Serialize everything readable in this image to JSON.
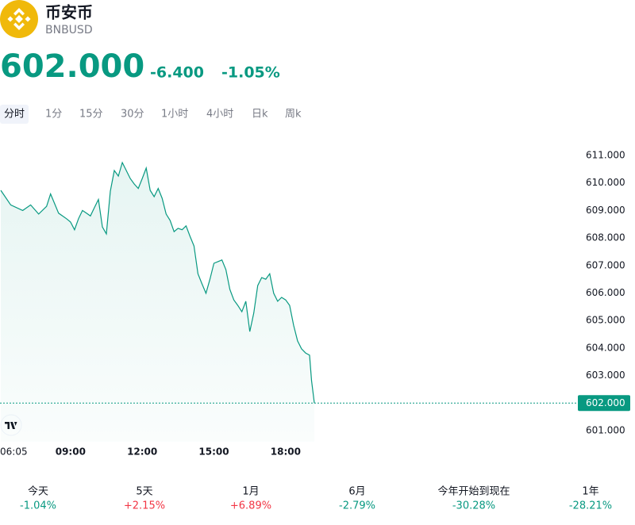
{
  "header": {
    "name": "币安币",
    "symbol": "BNBUSD",
    "price": "602.000",
    "change": "-6.400",
    "change_percent": "-1.05%"
  },
  "tabs": [
    "分时",
    "1分",
    "15分",
    "30分",
    "1小时",
    "4小时",
    "日k",
    "周k"
  ],
  "active_tab": 0,
  "chart_data": {
    "type": "line",
    "color": "#089981",
    "x": [
      "06:05",
      "06:30",
      "07:00",
      "07:20",
      "07:40",
      "08:00",
      "08:10",
      "08:30",
      "08:50",
      "09:00",
      "09:10",
      "09:20",
      "09:30",
      "09:40",
      "09:50",
      "10:00",
      "10:10",
      "10:20",
      "10:30",
      "10:40",
      "10:50",
      "11:00",
      "11:10",
      "11:20",
      "11:30",
      "11:40",
      "11:50",
      "12:00",
      "12:10",
      "12:20",
      "12:30",
      "12:40",
      "12:50",
      "13:00",
      "13:10",
      "13:20",
      "13:30",
      "13:40",
      "13:50",
      "14:00",
      "14:10",
      "14:20",
      "14:30",
      "14:40",
      "14:50",
      "15:00",
      "15:10",
      "15:20",
      "15:30",
      "15:40",
      "15:50",
      "16:00",
      "16:10",
      "16:20",
      "16:30",
      "16:40",
      "16:50",
      "17:00",
      "17:10",
      "17:20",
      "17:30",
      "17:40",
      "17:50",
      "18:00",
      "18:10",
      "18:20",
      "18:30",
      "18:40",
      "18:50",
      "19:00",
      "19:05",
      "19:10",
      "19:12"
    ],
    "values": [
      609.73,
      609.2,
      609.0,
      609.2,
      608.87,
      609.15,
      609.6,
      608.9,
      608.7,
      608.58,
      608.3,
      608.7,
      609.0,
      608.9,
      608.8,
      609.1,
      609.4,
      608.4,
      608.15,
      609.7,
      610.45,
      610.25,
      610.74,
      610.45,
      610.16,
      609.96,
      609.8,
      610.16,
      610.54,
      609.73,
      609.5,
      609.8,
      609.44,
      608.87,
      608.64,
      608.23,
      608.35,
      608.3,
      608.44,
      608.06,
      607.71,
      606.7,
      606.33,
      605.99,
      606.5,
      607.08,
      607.14,
      607.2,
      606.85,
      606.13,
      605.75,
      605.55,
      605.32,
      605.7,
      604.6,
      605.27,
      606.27,
      606.56,
      606.5,
      606.7,
      605.99,
      605.7,
      605.84,
      605.75,
      605.55,
      604.83,
      604.26,
      603.97,
      603.82,
      603.74,
      602.82,
      602.24,
      602.0
    ],
    "xlim": [
      "06:05",
      "19:12"
    ],
    "xticks": [
      "06:05",
      "09:00",
      "12:00",
      "15:00",
      "18:00"
    ],
    "ylim": [
      600.6,
      611.5
    ],
    "yticks": [
      {
        "value": 601,
        "label": "601.000"
      },
      {
        "value": 602,
        "label": "602.000"
      },
      {
        "value": 603,
        "label": "603.000"
      },
      {
        "value": 604,
        "label": "604.000"
      },
      {
        "value": 605,
        "label": "605.000"
      },
      {
        "value": 606,
        "label": "606.000"
      },
      {
        "value": 607,
        "label": "607.000"
      },
      {
        "value": 608,
        "label": "608.000"
      },
      {
        "value": 609,
        "label": "609.000"
      },
      {
        "value": 610,
        "label": "610.000"
      },
      {
        "value": 611,
        "label": "611.000"
      }
    ],
    "price_line": {
      "value": 602,
      "label": "602.000"
    }
  },
  "performance": [
    {
      "label": "今天",
      "value": "-1.04%"
    },
    {
      "label": "5天",
      "value": "+2.15%"
    },
    {
      "label": "1月",
      "value": "+6.89%"
    },
    {
      "label": "6月",
      "value": "-2.79%"
    },
    {
      "label": "今年开始到现在",
      "value": "-30.28%"
    },
    {
      "label": "1年",
      "value": "-28.21%"
    }
  ]
}
